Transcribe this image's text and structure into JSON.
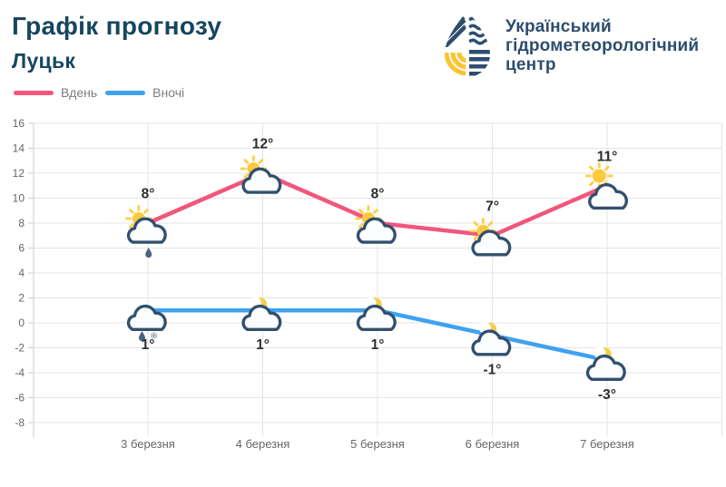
{
  "header": {
    "title": "Графік прогнозу",
    "city": "Луцьк",
    "logo": {
      "lines": [
        "Український",
        "гідрометеорологічний",
        "центр"
      ]
    }
  },
  "colors": {
    "title": "#17465f",
    "logo_navy": "#2d4d6e",
    "logo_yellow": "#fdc330",
    "grid": "#e5e5e5",
    "axis": "#cccccc",
    "tick_text": "#666666",
    "label_text": "#2d2d2d",
    "day_line": "#f2567c",
    "night_line": "#3fa2f0"
  },
  "chart_data": {
    "type": "line",
    "title": "",
    "xlabel": "",
    "ylabel": "",
    "ylim": [
      -8,
      16
    ],
    "ytick_step": 2,
    "grid": true,
    "legend_position": "top-left",
    "categories": [
      "3 березня",
      "4 березня",
      "5 березня",
      "6 березня",
      "7 березня"
    ],
    "series": [
      {
        "name": "Вдень",
        "color": "#f2567c",
        "values": [
          8,
          12,
          8,
          7,
          11
        ],
        "labels": [
          "8°",
          "12°",
          "8°",
          "7°",
          "11°"
        ],
        "icons": [
          "sun-cloud-rain",
          "sun-cloud",
          "sun-cloud",
          "sun-cloud",
          "sun-over-cloud"
        ],
        "label_position": "above"
      },
      {
        "name": "Вночі",
        "color": "#3fa2f0",
        "values": [
          1,
          1,
          1,
          -1,
          -3
        ],
        "labels": [
          "1°",
          "1°",
          "1°",
          "-1°",
          "-3°"
        ],
        "icons": [
          "cloud-rain-snow",
          "moon-cloud",
          "moon-cloud",
          "moon-cloud",
          "moon-cloud"
        ],
        "label_position": "below"
      }
    ]
  }
}
